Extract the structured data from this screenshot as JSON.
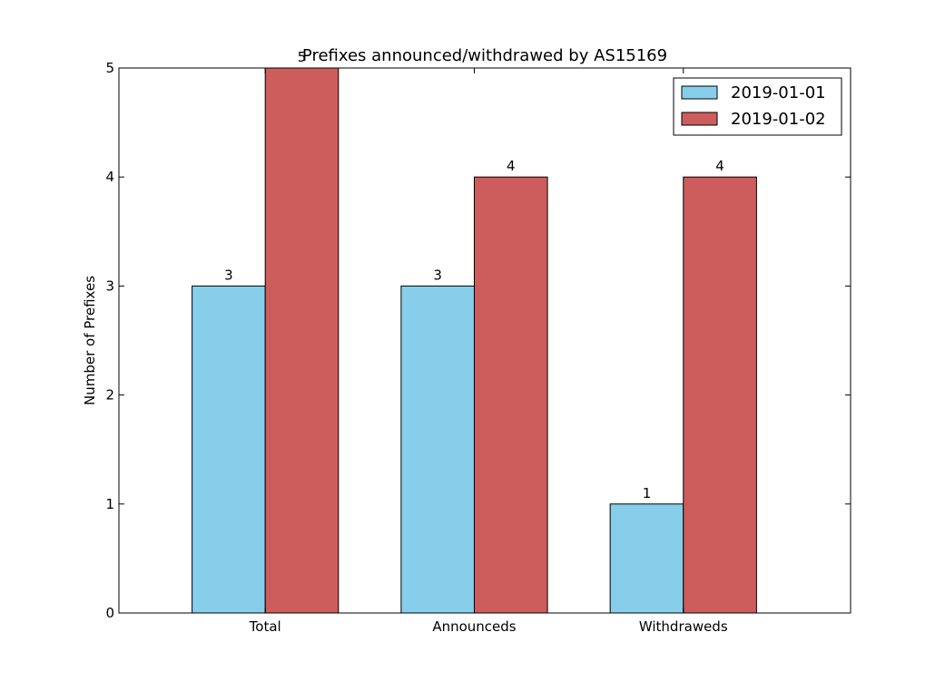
{
  "chart_data": {
    "type": "bar",
    "title": "Prefixes announced/withdrawed by AS15169",
    "xlabel": "",
    "ylabel": "Number of Prefixes",
    "categories": [
      "Total",
      "Announceds",
      "Withdraweds"
    ],
    "series": [
      {
        "name": "2019-01-01",
        "values": [
          3,
          3,
          1
        ],
        "color": "#87CEEB"
      },
      {
        "name": "2019-01-02",
        "values": [
          5,
          4,
          4
        ],
        "color": "#CD5C5C"
      }
    ],
    "ylim": [
      0,
      5
    ],
    "yticks": [
      "0",
      "1",
      "2",
      "3",
      "4",
      "5"
    ],
    "grid": false,
    "legend_position": "top-right",
    "data_labels": true
  }
}
